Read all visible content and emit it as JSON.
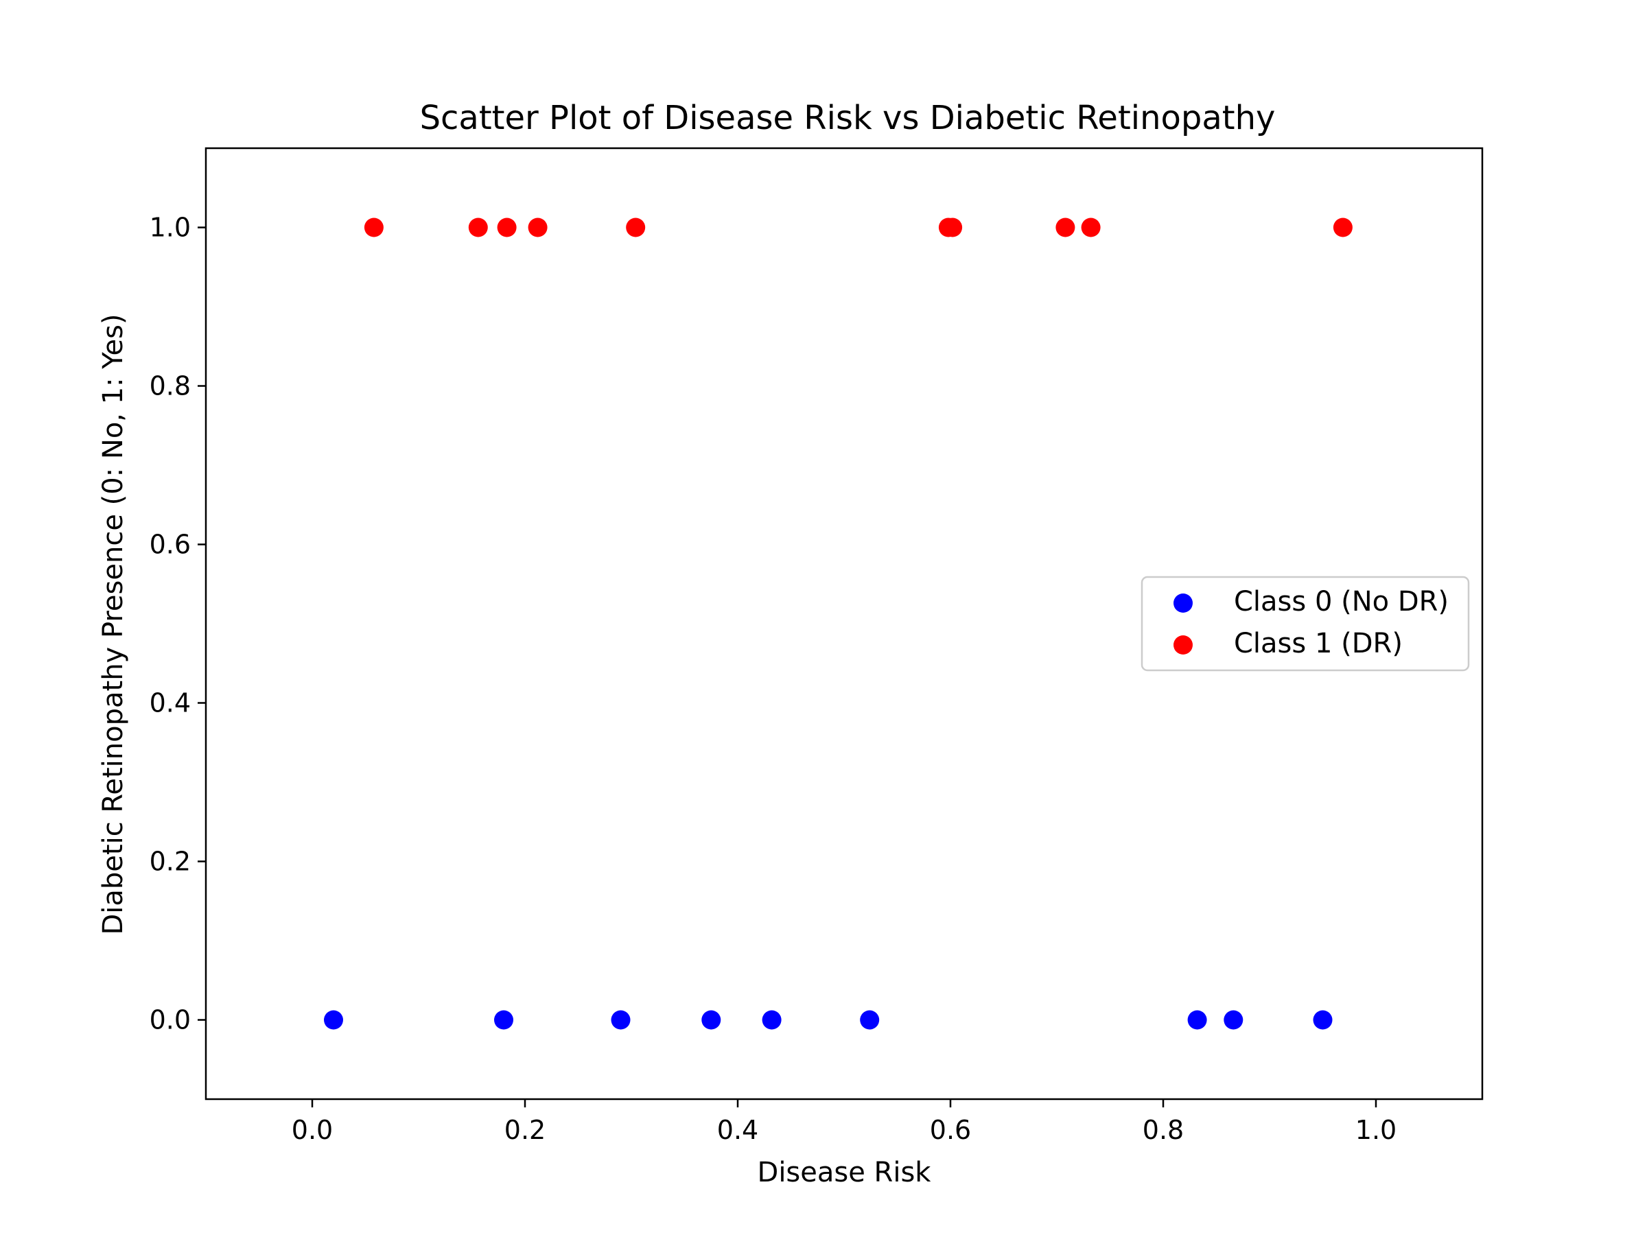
{
  "chart_data": {
    "type": "scatter",
    "title": "Scatter Plot of Disease Risk vs Diabetic Retinopathy",
    "xlabel": "Disease Risk",
    "ylabel": "Diabetic Retinopathy Presence (0: No, 1: Yes)",
    "xlim": [
      -0.1,
      1.1
    ],
    "ylim": [
      -0.1,
      1.1
    ],
    "x_ticks": [
      "0.0",
      "0.2",
      "0.4",
      "0.6",
      "0.8",
      "1.0"
    ],
    "y_ticks": [
      "0.0",
      "0.2",
      "0.4",
      "0.6",
      "0.8",
      "1.0"
    ],
    "grid": false,
    "legend_position": "center-right",
    "series": [
      {
        "name": "Class 0 (No DR)",
        "color": "#0000ff",
        "points": [
          {
            "x": 0.02,
            "y": 0
          },
          {
            "x": 0.18,
            "y": 0
          },
          {
            "x": 0.29,
            "y": 0
          },
          {
            "x": 0.375,
            "y": 0
          },
          {
            "x": 0.432,
            "y": 0
          },
          {
            "x": 0.524,
            "y": 0
          },
          {
            "x": 0.832,
            "y": 0
          },
          {
            "x": 0.866,
            "y": 0
          },
          {
            "x": 0.95,
            "y": 0
          }
        ]
      },
      {
        "name": "Class 1 (DR)",
        "color": "#ff0000",
        "points": [
          {
            "x": 0.058,
            "y": 1
          },
          {
            "x": 0.156,
            "y": 1
          },
          {
            "x": 0.183,
            "y": 1
          },
          {
            "x": 0.212,
            "y": 1
          },
          {
            "x": 0.304,
            "y": 1
          },
          {
            "x": 0.598,
            "y": 1
          },
          {
            "x": 0.602,
            "y": 1
          },
          {
            "x": 0.708,
            "y": 1
          },
          {
            "x": 0.732,
            "y": 1
          },
          {
            "x": 0.969,
            "y": 1
          }
        ]
      }
    ]
  }
}
